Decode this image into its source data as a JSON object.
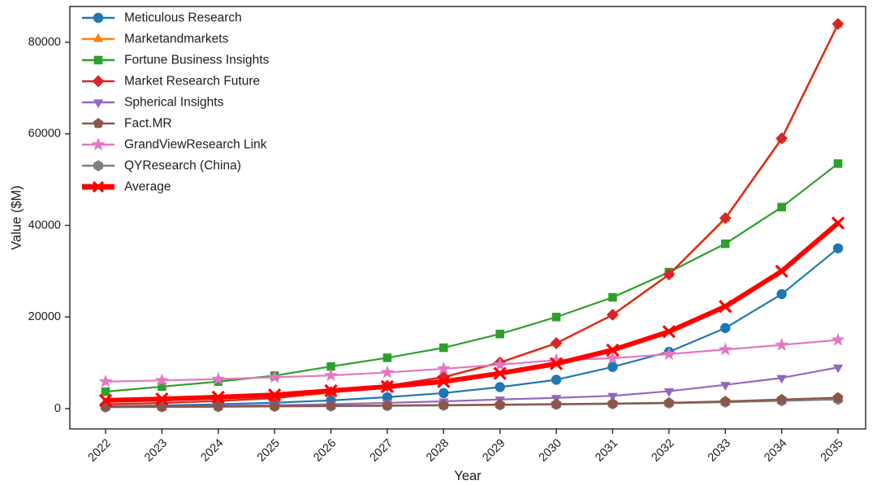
{
  "figure": {
    "background": "#ffffff",
    "text_color": "#1c1c1c",
    "spine_color": "#262626"
  },
  "chart_data": {
    "type": "line",
    "title": "",
    "xlabel": "Year",
    "ylabel": "Value ($M)",
    "grid": false,
    "legend_position": "upper-left",
    "legend_frame": false,
    "x": [
      2022,
      2023,
      2024,
      2025,
      2026,
      2027,
      2028,
      2029,
      2030,
      2031,
      2032,
      2033,
      2034,
      2035
    ],
    "xtick_labels": [
      "2022",
      "2023",
      "2024",
      "2025",
      "2026",
      "2027",
      "2028",
      "2029",
      "2030",
      "2031",
      "2032",
      "2033",
      "2034",
      "2035"
    ],
    "yticks": [
      0,
      20000,
      40000,
      60000,
      80000
    ],
    "ytick_labels": [
      "0",
      "20000",
      "40000",
      "60000",
      "80000"
    ],
    "ylim": [
      -4435,
      87800
    ],
    "series": [
      {
        "name": "Meticulous Research",
        "color": "#1f77b4",
        "marker": "circle",
        "line_width": 2.2,
        "values": [
          500,
          700,
          950,
          1300,
          1800,
          2500,
          3400,
          4700,
          6300,
          9100,
          12400,
          17600,
          25000,
          35000
        ]
      },
      {
        "name": "Marketandmarkets",
        "color": "#ff7f0e",
        "marker": "triangle-up",
        "line_width": 2.2,
        "values": [
          900,
          1200,
          1650,
          2250,
          3500,
          4900,
          6800,
          10000,
          14200,
          20400,
          29200,
          41400,
          58800,
          83800
        ]
      },
      {
        "name": "Fortune Business Insights",
        "color": "#2ca02c",
        "marker": "square",
        "line_width": 2.2,
        "values": [
          3700,
          4800,
          5900,
          7200,
          9200,
          11100,
          13300,
          16300,
          20000,
          24300,
          29800,
          36000,
          44000,
          53500
        ]
      },
      {
        "name": "Market Research Future",
        "color": "#d62728",
        "marker": "diamond",
        "line_width": 2.2,
        "values": [
          950,
          1250,
          1700,
          2300,
          3600,
          5000,
          6900,
          10100,
          14300,
          20500,
          29300,
          41600,
          59000,
          84000
        ]
      },
      {
        "name": "Spherical Insights",
        "color": "#9467bd",
        "marker": "triangle-down",
        "line_width": 2.2,
        "values": [
          350,
          450,
          600,
          750,
          950,
          1250,
          1600,
          2000,
          2350,
          2800,
          3800,
          5200,
          6700,
          9000
        ]
      },
      {
        "name": "Fact.MR",
        "color": "#8c564b",
        "marker": "pentagon",
        "line_width": 2.2,
        "values": [
          400,
          450,
          500,
          560,
          630,
          700,
          790,
          890,
          1000,
          1120,
          1300,
          1600,
          2000,
          2400
        ]
      },
      {
        "name": "GrandViewResearch Link",
        "color": "#e377c2",
        "marker": "star",
        "line_width": 2.2,
        "values": [
          5900,
          6150,
          6450,
          6850,
          7250,
          7900,
          8700,
          9600,
          10600,
          11000,
          11900,
          12900,
          13900,
          15000
        ]
      },
      {
        "name": "QYResearch (China)",
        "color": "#7f7f7f",
        "marker": "hexagon",
        "line_width": 2.2,
        "values": [
          300,
          340,
          390,
          450,
          520,
          600,
          690,
          790,
          900,
          1020,
          1180,
          1400,
          1700,
          2000
        ]
      },
      {
        "name": "Average",
        "color": "#ff0000",
        "marker": "x",
        "line_width": 6,
        "values": [
          1800,
          2100,
          2500,
          3000,
          3900,
          4800,
          5900,
          7700,
          9800,
          12800,
          16800,
          22300,
          30000,
          40500
        ]
      }
    ]
  }
}
